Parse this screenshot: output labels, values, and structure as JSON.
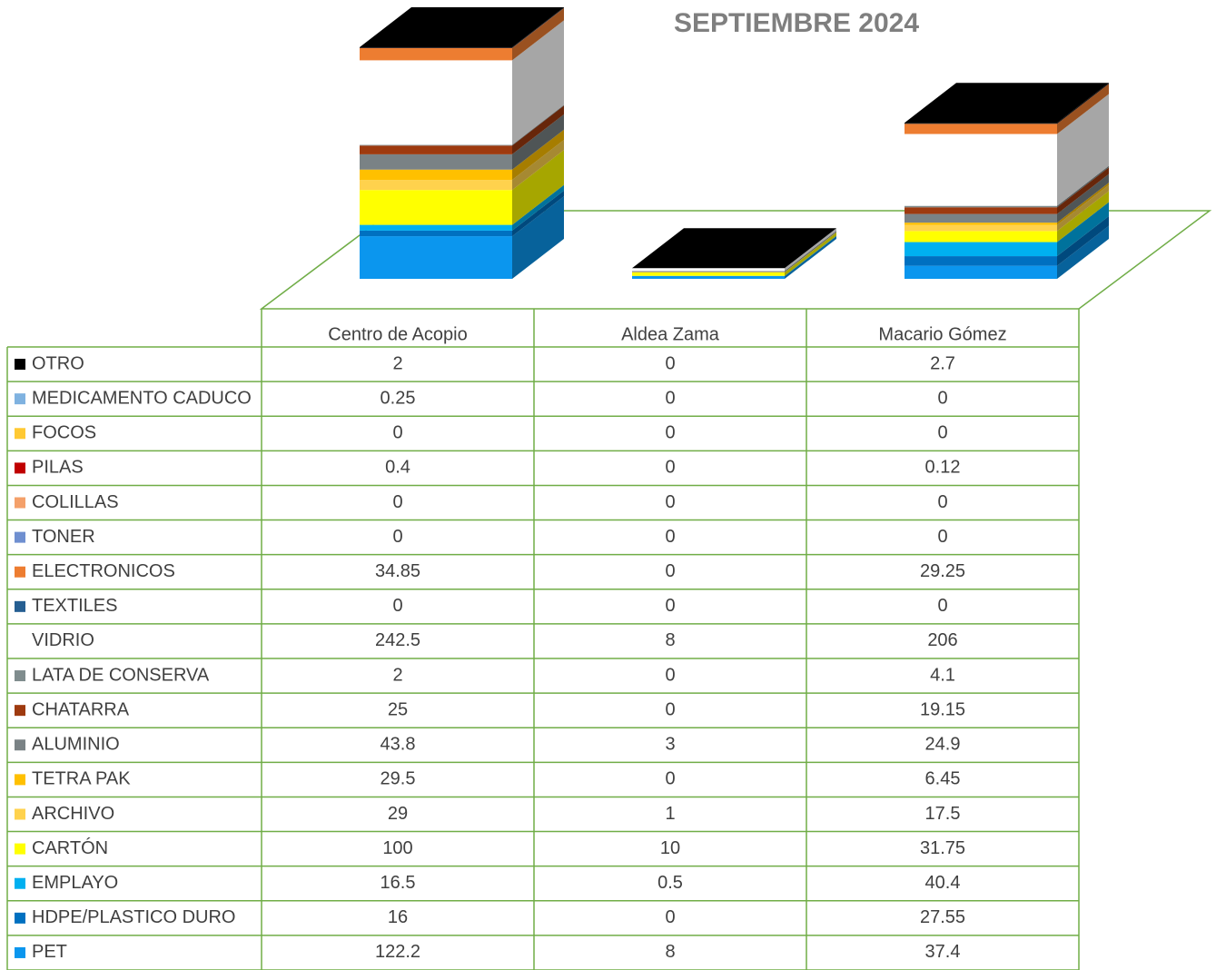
{
  "chart_data": {
    "type": "bar",
    "stacked": true,
    "title": "SEPTIEMBRE 2024",
    "categories": [
      "Centro de Acopio",
      "Aldea Zama",
      "Macario Gómez"
    ],
    "series": [
      {
        "name": "OTRO",
        "color": "#000000",
        "values": [
          2,
          0,
          2.7
        ]
      },
      {
        "name": "MEDICAMENTO CADUCO",
        "color": "#7fb2e0",
        "values": [
          0.25,
          0,
          0
        ]
      },
      {
        "name": "FOCOS",
        "color": "#ffc933",
        "values": [
          0,
          0,
          0
        ]
      },
      {
        "name": "PILAS",
        "color": "#c00000",
        "values": [
          0.4,
          0,
          0.12
        ]
      },
      {
        "name": "COLILLAS",
        "color": "#f4a06a",
        "values": [
          0,
          0,
          0
        ]
      },
      {
        "name": "TONER",
        "color": "#6f8fd0",
        "values": [
          0,
          0,
          0
        ]
      },
      {
        "name": "ELECTRONICOS",
        "color": "#ed7d31",
        "values": [
          34.85,
          0,
          29.25
        ]
      },
      {
        "name": "TEXTILES",
        "color": "#255e91",
        "values": [
          0,
          0,
          0
        ]
      },
      {
        "name": "VIDRIO",
        "color": "#ffffff",
        "values": [
          242.5,
          8,
          206
        ]
      },
      {
        "name": "LATA DE CONSERVA",
        "color": "#7f8c8d",
        "values": [
          2,
          0,
          4.1
        ]
      },
      {
        "name": "CHATARRA",
        "color": "#9e3a0f",
        "values": [
          25,
          0,
          19.15
        ]
      },
      {
        "name": "ALUMINIO",
        "color": "#7a8285",
        "values": [
          43.8,
          3,
          24.9
        ]
      },
      {
        "name": "TETRA PAK",
        "color": "#ffc000",
        "values": [
          29.5,
          0,
          6.45
        ]
      },
      {
        "name": "ARCHIVO",
        "color": "#ffd24d",
        "values": [
          29,
          1,
          17.5
        ]
      },
      {
        "name": "CARTÓN",
        "color": "#ffff00",
        "values": [
          100,
          10,
          31.75
        ]
      },
      {
        "name": "EMPLAYO",
        "color": "#00b0f0",
        "values": [
          16.5,
          0.5,
          40.4
        ]
      },
      {
        "name": "HDPE/PLASTICO DURO",
        "color": "#0070c0",
        "values": [
          16,
          0,
          27.55
        ]
      },
      {
        "name": "PET",
        "color": "#0b96ee",
        "values": [
          122.2,
          8,
          37.4
        ]
      }
    ]
  }
}
